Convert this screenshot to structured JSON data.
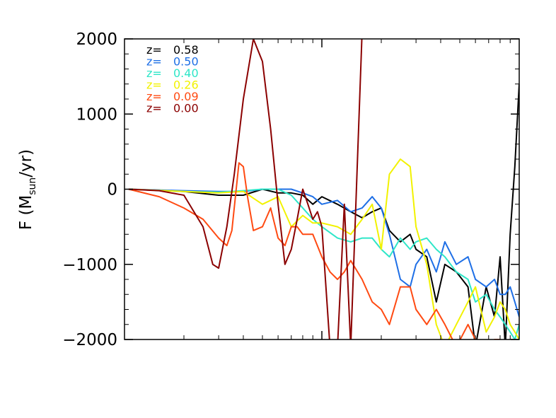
{
  "chart_data": {
    "type": "line",
    "title": "",
    "xlabel": "",
    "ylabel": {
      "prefix": "F (M",
      "subscript": "sun",
      "suffix": "/yr)"
    },
    "x_scale": "log",
    "xlim": [
      0.01,
      1
    ],
    "ylim": [
      -2000,
      2000
    ],
    "yticks": [
      -2000,
      -1000,
      0,
      1000,
      2000
    ],
    "ytick_labels": [
      "−2000",
      "−1000",
      "0",
      "1000",
      "2000"
    ],
    "grid": false,
    "legend_position": "top-left",
    "series": [
      {
        "name": "0.58",
        "legend_prefix": "z=",
        "color": "#000000",
        "x": [
          0.0105,
          0.02,
          0.03,
          0.04,
          0.05,
          0.06,
          0.07,
          0.08,
          0.09,
          0.1,
          0.12,
          0.14,
          0.16,
          0.18,
          0.2,
          0.22,
          0.25,
          0.28,
          0.3,
          0.34,
          0.38,
          0.42,
          0.48,
          0.55,
          0.6,
          0.68,
          0.75,
          0.8,
          0.85,
          0.9,
          0.95,
          1.0
        ],
        "y": [
          0,
          -30,
          -80,
          -80,
          0,
          -50,
          -50,
          -80,
          -200,
          -100,
          -200,
          -300,
          -380,
          -300,
          -250,
          -550,
          -700,
          -600,
          -800,
          -900,
          -1500,
          -1000,
          -1100,
          -1300,
          -2100,
          -1300,
          -1700,
          -900,
          -2100,
          -600,
          300,
          1400
        ]
      },
      {
        "name": "0.50",
        "legend_prefix": "z=",
        "color": "#1e6fe6",
        "x": [
          0.0105,
          0.02,
          0.03,
          0.04,
          0.05,
          0.06,
          0.07,
          0.08,
          0.09,
          0.1,
          0.12,
          0.14,
          0.16,
          0.18,
          0.2,
          0.22,
          0.25,
          0.28,
          0.3,
          0.34,
          0.38,
          0.42,
          0.48,
          0.55,
          0.6,
          0.68,
          0.75,
          0.8,
          0.85,
          0.9,
          0.95,
          1.0
        ],
        "y": [
          0,
          -20,
          -30,
          -30,
          0,
          0,
          0,
          -50,
          -100,
          -200,
          -150,
          -300,
          -250,
          -100,
          -250,
          -600,
          -1200,
          -1300,
          -1000,
          -800,
          -1100,
          -700,
          -1000,
          -900,
          -1200,
          -1300,
          -1200,
          -1400,
          -1400,
          -1300,
          -1500,
          -1700
        ]
      },
      {
        "name": "0.40",
        "legend_prefix": "z=",
        "color": "#2ee6c8",
        "x": [
          0.0105,
          0.02,
          0.03,
          0.04,
          0.05,
          0.06,
          0.07,
          0.08,
          0.09,
          0.1,
          0.12,
          0.14,
          0.16,
          0.18,
          0.2,
          0.22,
          0.25,
          0.28,
          0.3,
          0.34,
          0.38,
          0.42,
          0.48,
          0.55,
          0.6,
          0.68,
          0.75,
          0.8,
          0.85,
          0.9,
          0.95,
          1.0
        ],
        "y": [
          0,
          -30,
          -40,
          -20,
          0,
          0,
          -80,
          -250,
          -400,
          -500,
          -650,
          -700,
          -650,
          -650,
          -800,
          -900,
          -650,
          -800,
          -700,
          -650,
          -800,
          -900,
          -1100,
          -1200,
          -1500,
          -1400,
          -1600,
          -1700,
          -1800,
          -1900,
          -2000,
          -1800
        ]
      },
      {
        "name": "0.26",
        "legend_prefix": "z=",
        "color": "#f2f200",
        "x": [
          0.0105,
          0.02,
          0.03,
          0.04,
          0.05,
          0.06,
          0.07,
          0.08,
          0.09,
          0.1,
          0.12,
          0.14,
          0.16,
          0.18,
          0.2,
          0.22,
          0.25,
          0.28,
          0.3,
          0.34,
          0.38,
          0.42,
          0.48,
          0.55,
          0.6,
          0.68,
          0.75,
          0.8,
          0.85,
          0.9,
          0.95,
          1.0
        ],
        "y": [
          0,
          -30,
          -50,
          -30,
          -200,
          -100,
          -500,
          -350,
          -450,
          -450,
          -500,
          -600,
          -400,
          -200,
          -800,
          200,
          400,
          300,
          -500,
          -1000,
          -1800,
          -2100,
          -1800,
          -1500,
          -1300,
          -1900,
          -1700,
          -1500,
          -1600,
          -1800,
          -1900,
          -2000
        ]
      },
      {
        "name": "0.09",
        "legend_prefix": "z=",
        "color": "#ff4a12",
        "x": [
          0.0105,
          0.015,
          0.02,
          0.025,
          0.03,
          0.033,
          0.035,
          0.038,
          0.04,
          0.042,
          0.045,
          0.05,
          0.055,
          0.06,
          0.065,
          0.07,
          0.075,
          0.08,
          0.09,
          0.1,
          0.11,
          0.12,
          0.13,
          0.14,
          0.16,
          0.18,
          0.2,
          0.22,
          0.25,
          0.28,
          0.3,
          0.34,
          0.38,
          0.42,
          0.48,
          0.55,
          0.6,
          0.68,
          0.75,
          0.8,
          0.85
        ],
        "y": [
          0,
          -100,
          -250,
          -400,
          -650,
          -750,
          -550,
          350,
          300,
          -100,
          -550,
          -500,
          -250,
          -650,
          -750,
          -500,
          -500,
          -600,
          -600,
          -900,
          -1100,
          -1200,
          -1100,
          -950,
          -1200,
          -1500,
          -1600,
          -1800,
          -1300,
          -1300,
          -1600,
          -1800,
          -1600,
          -1800,
          -2100,
          -1800,
          -2000,
          -2100,
          -2000,
          -2000,
          -2100
        ]
      },
      {
        "name": "0.00",
        "legend_prefix": "z=",
        "color": "#8b0000",
        "x": [
          0.0105,
          0.015,
          0.02,
          0.025,
          0.028,
          0.03,
          0.033,
          0.036,
          0.04,
          0.045,
          0.05,
          0.055,
          0.06,
          0.065,
          0.07,
          0.075,
          0.08,
          0.085,
          0.09,
          0.095,
          0.1,
          0.11,
          0.12,
          0.13,
          0.14,
          0.16,
          0.18,
          0.2,
          0.22,
          0.25,
          0.28,
          0.3,
          0.34,
          0.38,
          0.42,
          0.48,
          0.55,
          0.6,
          0.68,
          0.75,
          0.8
        ],
        "y": [
          0,
          -20,
          -80,
          -500,
          -1000,
          -1050,
          -500,
          200,
          1200,
          2000,
          1700,
          800,
          -200,
          -1000,
          -800,
          -400,
          0,
          -200,
          -400,
          -300,
          -500,
          -2100,
          -2100,
          -200,
          -2100,
          2100,
          2100,
          2100,
          2100,
          2100,
          2100,
          2100,
          2100,
          2100,
          2100,
          2100,
          2100,
          2100,
          2100,
          2100,
          2100
        ]
      }
    ]
  }
}
